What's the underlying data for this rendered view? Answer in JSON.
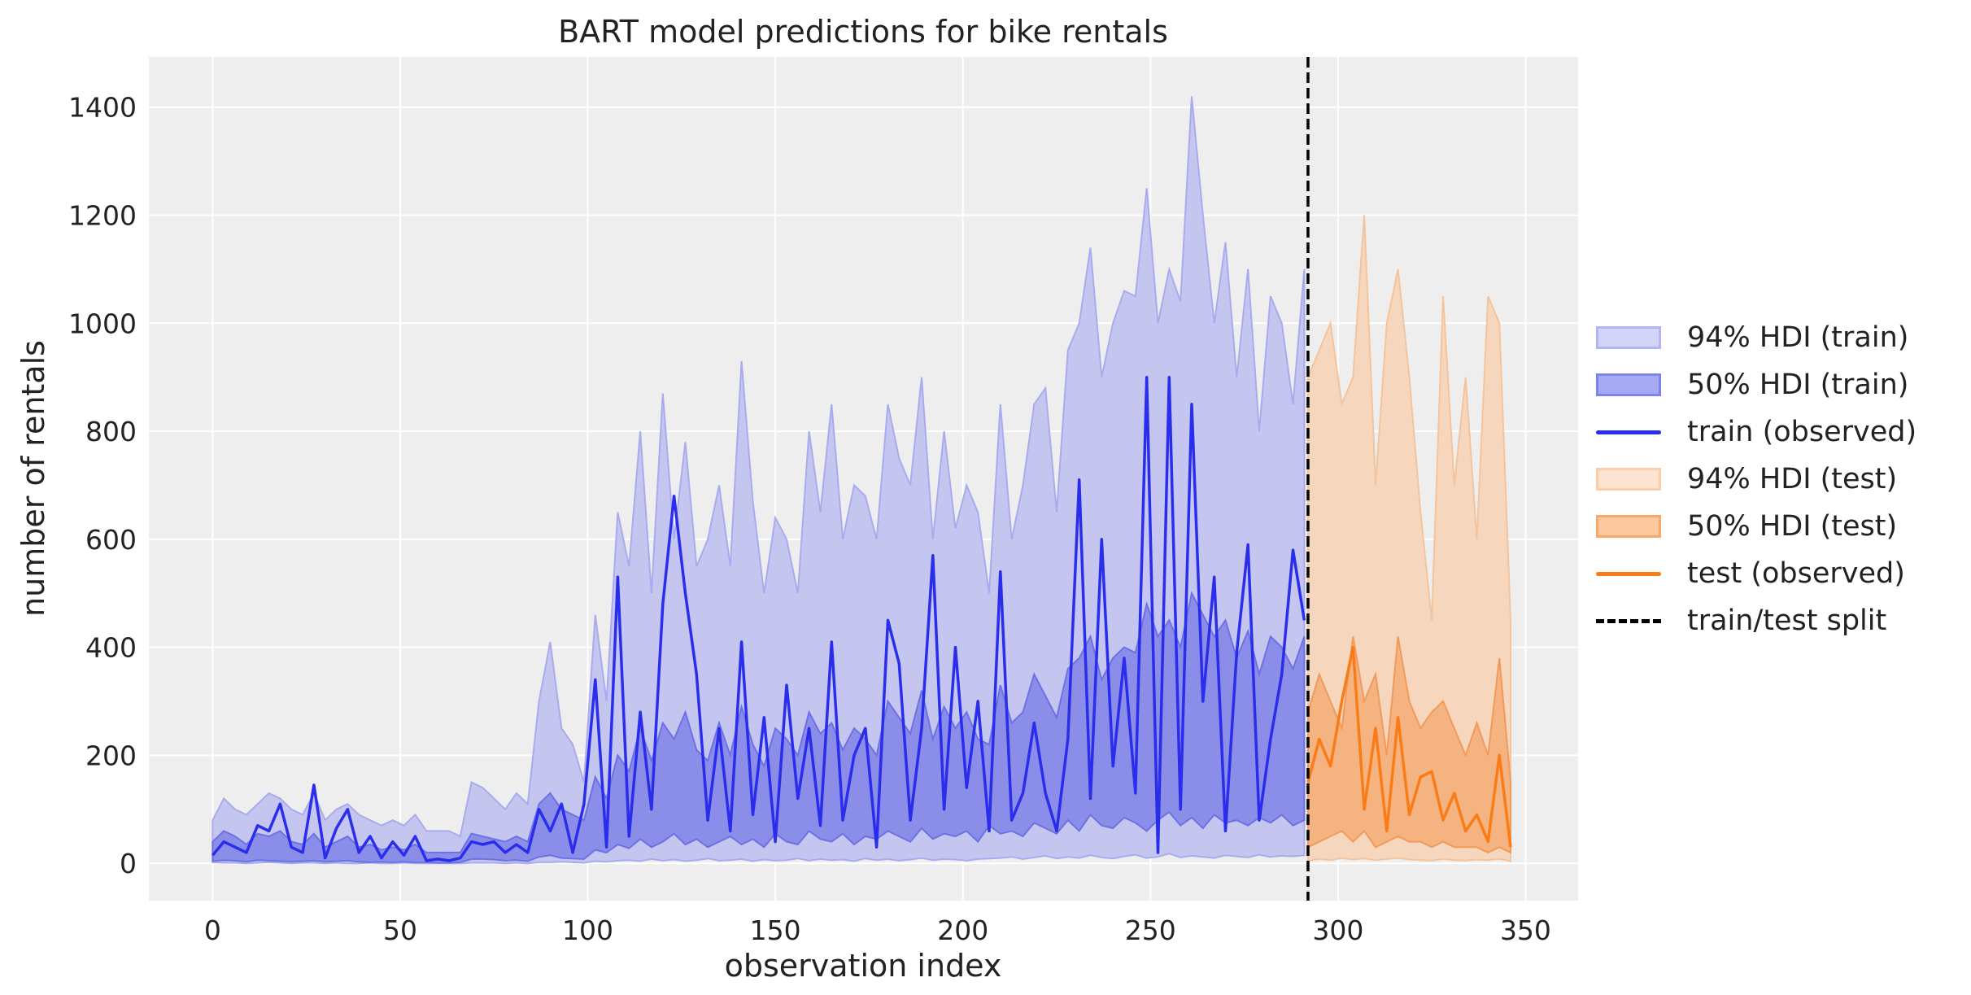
{
  "chart_data": {
    "type": "line",
    "title": "BART model predictions for bike rentals",
    "xlabel": "observation index",
    "ylabel": "number of rentals",
    "xlim": [
      -17,
      364
    ],
    "ylim": [
      -69,
      1493
    ],
    "xticks": [
      0,
      50,
      100,
      150,
      200,
      250,
      300,
      350
    ],
    "yticks": [
      0,
      200,
      400,
      600,
      800,
      1000,
      1200,
      1400
    ],
    "grid": true,
    "legend_position": "right",
    "split_x": 292,
    "colors": {
      "train": "#2a2eec",
      "test": "#fa7c17",
      "train94": "#c4c6f0",
      "train50": "#8a8ee8",
      "test94": "#f6d7bd",
      "test50": "#f6b382",
      "split": "#000000",
      "bg": "#eeeeee"
    },
    "legend": [
      {
        "label": "94% HDI (train)",
        "kind": "band",
        "fill": "#d3d4f8",
        "edge": "#b3b5f3"
      },
      {
        "label": "50% HDI (train)",
        "kind": "band",
        "fill": "#a7a9f3",
        "edge": "#7e82ee"
      },
      {
        "label": "train (observed)",
        "kind": "line",
        "color": "#2a2eec"
      },
      {
        "label": "94% HDI (test)",
        "kind": "band",
        "fill": "#fde4d2",
        "edge": "#fbcda9"
      },
      {
        "label": "50% HDI (test)",
        "kind": "band",
        "fill": "#fdc89f",
        "edge": "#f9a86a"
      },
      {
        "label": "test (observed)",
        "kind": "line",
        "color": "#fa7c17"
      },
      {
        "label": "train/test split",
        "kind": "dashed",
        "color": "#000000"
      }
    ],
    "train": {
      "x_start": 0,
      "x_step": 3,
      "observed": [
        15,
        40,
        30,
        20,
        70,
        60,
        110,
        30,
        20,
        145,
        10,
        65,
        100,
        20,
        50,
        10,
        40,
        15,
        50,
        5,
        8,
        5,
        10,
        40,
        35,
        40,
        20,
        35,
        20,
        100,
        60,
        110,
        20,
        110,
        340,
        30,
        530,
        50,
        280,
        100,
        480,
        680,
        500,
        350,
        80,
        250,
        60,
        410,
        90,
        270,
        40,
        330,
        120,
        250,
        70,
        410,
        80,
        200,
        250,
        30,
        450,
        370,
        80,
        250,
        570,
        100,
        400,
        140,
        300,
        60,
        540,
        80,
        130,
        260,
        130,
        60,
        230,
        710,
        120,
        600,
        180,
        380,
        130,
        900,
        20,
        900,
        100,
        850,
        300,
        530,
        60,
        390,
        590,
        80,
        230,
        350,
        580,
        450
      ],
      "hdi94_high": [
        80,
        120,
        100,
        90,
        110,
        130,
        120,
        100,
        90,
        130,
        80,
        100,
        110,
        90,
        80,
        70,
        80,
        70,
        90,
        60,
        60,
        60,
        50,
        150,
        140,
        120,
        100,
        130,
        110,
        300,
        410,
        250,
        220,
        150,
        460,
        300,
        650,
        550,
        800,
        500,
        870,
        600,
        780,
        550,
        600,
        700,
        550,
        930,
        670,
        500,
        640,
        600,
        500,
        800,
        650,
        850,
        600,
        700,
        680,
        600,
        850,
        750,
        700,
        900,
        600,
        800,
        620,
        700,
        650,
        500,
        850,
        600,
        700,
        850,
        880,
        650,
        950,
        1000,
        1140,
        900,
        1000,
        1060,
        1050,
        1250,
        1000,
        1100,
        1040,
        1420,
        1200,
        1000,
        1150,
        900,
        1100,
        800,
        1050,
        1000,
        850,
        1100
      ],
      "hdi94_low": [
        2,
        1,
        1,
        0,
        1,
        2,
        1,
        0,
        1,
        1,
        0,
        1,
        0,
        0,
        1,
        0,
        0,
        1,
        0,
        0,
        0,
        0,
        0,
        1,
        1,
        1,
        0,
        1,
        0,
        2,
        2,
        3,
        2,
        1,
        4,
        3,
        5,
        6,
        4,
        8,
        5,
        7,
        4,
        6,
        9,
        5,
        6,
        8,
        4,
        7,
        5,
        6,
        9,
        5,
        8,
        6,
        7,
        4,
        9,
        6,
        8,
        5,
        7,
        10,
        6,
        8,
        7,
        5,
        8,
        9,
        10,
        12,
        8,
        11,
        14,
        9,
        12,
        10,
        15,
        11,
        9,
        13,
        16,
        10,
        12,
        18,
        11,
        14,
        12,
        10,
        15,
        13,
        11,
        16,
        12,
        14,
        13,
        15
      ],
      "hdi50_low": [
        4,
        6,
        5,
        3,
        6,
        5,
        4,
        3,
        4,
        5,
        3,
        4,
        5,
        3,
        2,
        3,
        2,
        3,
        2,
        2,
        1,
        1,
        2,
        8,
        8,
        7,
        5,
        6,
        4,
        12,
        15,
        10,
        9,
        8,
        25,
        20,
        35,
        28,
        45,
        30,
        40,
        55,
        35,
        45,
        30,
        40,
        50,
        35,
        45,
        30,
        55,
        40,
        35,
        60,
        45,
        40,
        55,
        35,
        50,
        45,
        60,
        50,
        40,
        65,
        45,
        55,
        50,
        60,
        40,
        70,
        55,
        60,
        50,
        75,
        65,
        55,
        80,
        60,
        90,
        70,
        65,
        85,
        75,
        60,
        80,
        95,
        70,
        85,
        65,
        90,
        75,
        80,
        70,
        85,
        75,
        90,
        70,
        80
      ],
      "hdi50_high": [
        40,
        60,
        50,
        35,
        55,
        50,
        60,
        40,
        35,
        55,
        30,
        40,
        50,
        30,
        35,
        25,
        30,
        25,
        35,
        20,
        20,
        20,
        20,
        55,
        50,
        45,
        40,
        50,
        40,
        110,
        130,
        100,
        90,
        80,
        160,
        120,
        200,
        170,
        250,
        190,
        260,
        230,
        280,
        210,
        190,
        260,
        200,
        290,
        220,
        180,
        250,
        230,
        200,
        280,
        240,
        260,
        210,
        250,
        230,
        200,
        300,
        270,
        240,
        320,
        230,
        290,
        250,
        280,
        230,
        220,
        330,
        260,
        280,
        350,
        310,
        270,
        360,
        380,
        420,
        340,
        380,
        400,
        390,
        480,
        420,
        450,
        400,
        500,
        460,
        420,
        450,
        380,
        430,
        350,
        420,
        400,
        360,
        420
      ]
    },
    "test": {
      "x_start": 292,
      "x_step": 3,
      "observed": [
        150,
        230,
        180,
        300,
        400,
        100,
        250,
        60,
        270,
        90,
        160,
        170,
        80,
        130,
        60,
        90,
        40,
        200,
        30
      ],
      "hdi94_high": [
        900,
        950,
        1000,
        850,
        900,
        1200,
        700,
        1000,
        1100,
        900,
        650,
        450,
        1050,
        700,
        900,
        600,
        1050,
        1000,
        450
      ],
      "hdi94_low": [
        5,
        8,
        6,
        10,
        7,
        9,
        6,
        8,
        10,
        7,
        6,
        5,
        8,
        6,
        5,
        7,
        6,
        8,
        4
      ],
      "hdi50_low": [
        30,
        40,
        50,
        60,
        40,
        60,
        30,
        40,
        50,
        40,
        40,
        30,
        40,
        30,
        30,
        30,
        20,
        30,
        20
      ],
      "hdi50_high": [
        280,
        350,
        300,
        250,
        420,
        300,
        350,
        200,
        420,
        300,
        250,
        280,
        300,
        250,
        200,
        260,
        200,
        380,
        150
      ]
    }
  }
}
